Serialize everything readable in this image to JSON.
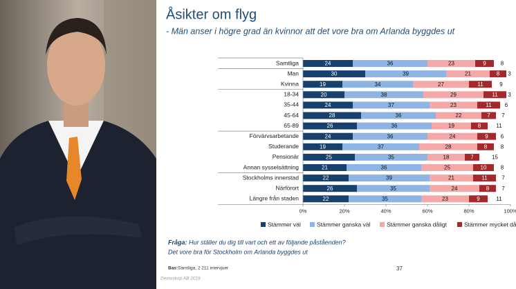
{
  "chart_data": {
    "type": "stacked-bar-horizontal",
    "title": "Åsikter om flyg",
    "subtitle": "- Män anser i högre grad än kvinnor att det vore bra om Arlanda byggdes ut",
    "categories": [
      "Samtliga",
      "Man",
      "Kvinna",
      "18-34",
      "35-44",
      "45-64",
      "65-89",
      "Förvärvsarbetande",
      "Studerande",
      "Pensionär",
      "Annan sysselsättning",
      "Stockholms innerstad",
      "Närförort",
      "Längre från staden"
    ],
    "series": [
      {
        "name": "Stämmer väl",
        "color": "#17406d",
        "values": [
          24,
          30,
          19,
          20,
          24,
          28,
          26,
          24,
          19,
          25,
          21,
          22,
          26,
          22
        ]
      },
      {
        "name": "Stämmer ganska väl",
        "color": "#8db4e2",
        "values": [
          36,
          39,
          34,
          38,
          37,
          36,
          36,
          36,
          37,
          35,
          36,
          39,
          35,
          35
        ]
      },
      {
        "name": "Stämmer ganska dåligt",
        "color": "#f4a9a8",
        "values": [
          23,
          21,
          27,
          29,
          23,
          22,
          19,
          24,
          28,
          18,
          25,
          21,
          24,
          23
        ]
      },
      {
        "name": "Stämmer mycket dåligt",
        "color": "#a4282c",
        "values": [
          9,
          8,
          11,
          11,
          11,
          7,
          8,
          9,
          8,
          7,
          10,
          11,
          8,
          9
        ]
      },
      {
        "color": "#ffffff",
        "values": [
          8,
          3,
          9,
          3,
          6,
          7,
          11,
          6,
          8,
          15,
          8,
          7,
          7,
          11
        ]
      }
    ],
    "xlim": [
      0,
      100
    ],
    "xticks": [
      {
        "value": 0,
        "label": "0%"
      },
      {
        "value": 20,
        "label": "20%"
      },
      {
        "value": 40,
        "label": "40%"
      },
      {
        "value": 60,
        "label": "60%"
      },
      {
        "value": 80,
        "label": "80%"
      },
      {
        "value": 100,
        "label": "100%"
      }
    ],
    "legend": "bottom"
  },
  "footer": {
    "question_label": "Fråga:",
    "question": "Hur ställer du dig till vart och ett av följande påståenden?",
    "statement": "Det vore bra för Stockholm om Arlanda byggdes ut",
    "base_label": "Bas:",
    "base": "Samtliga, 2 211 intervjuer",
    "page_number": "37",
    "source": "Demoskop AB 2019"
  }
}
